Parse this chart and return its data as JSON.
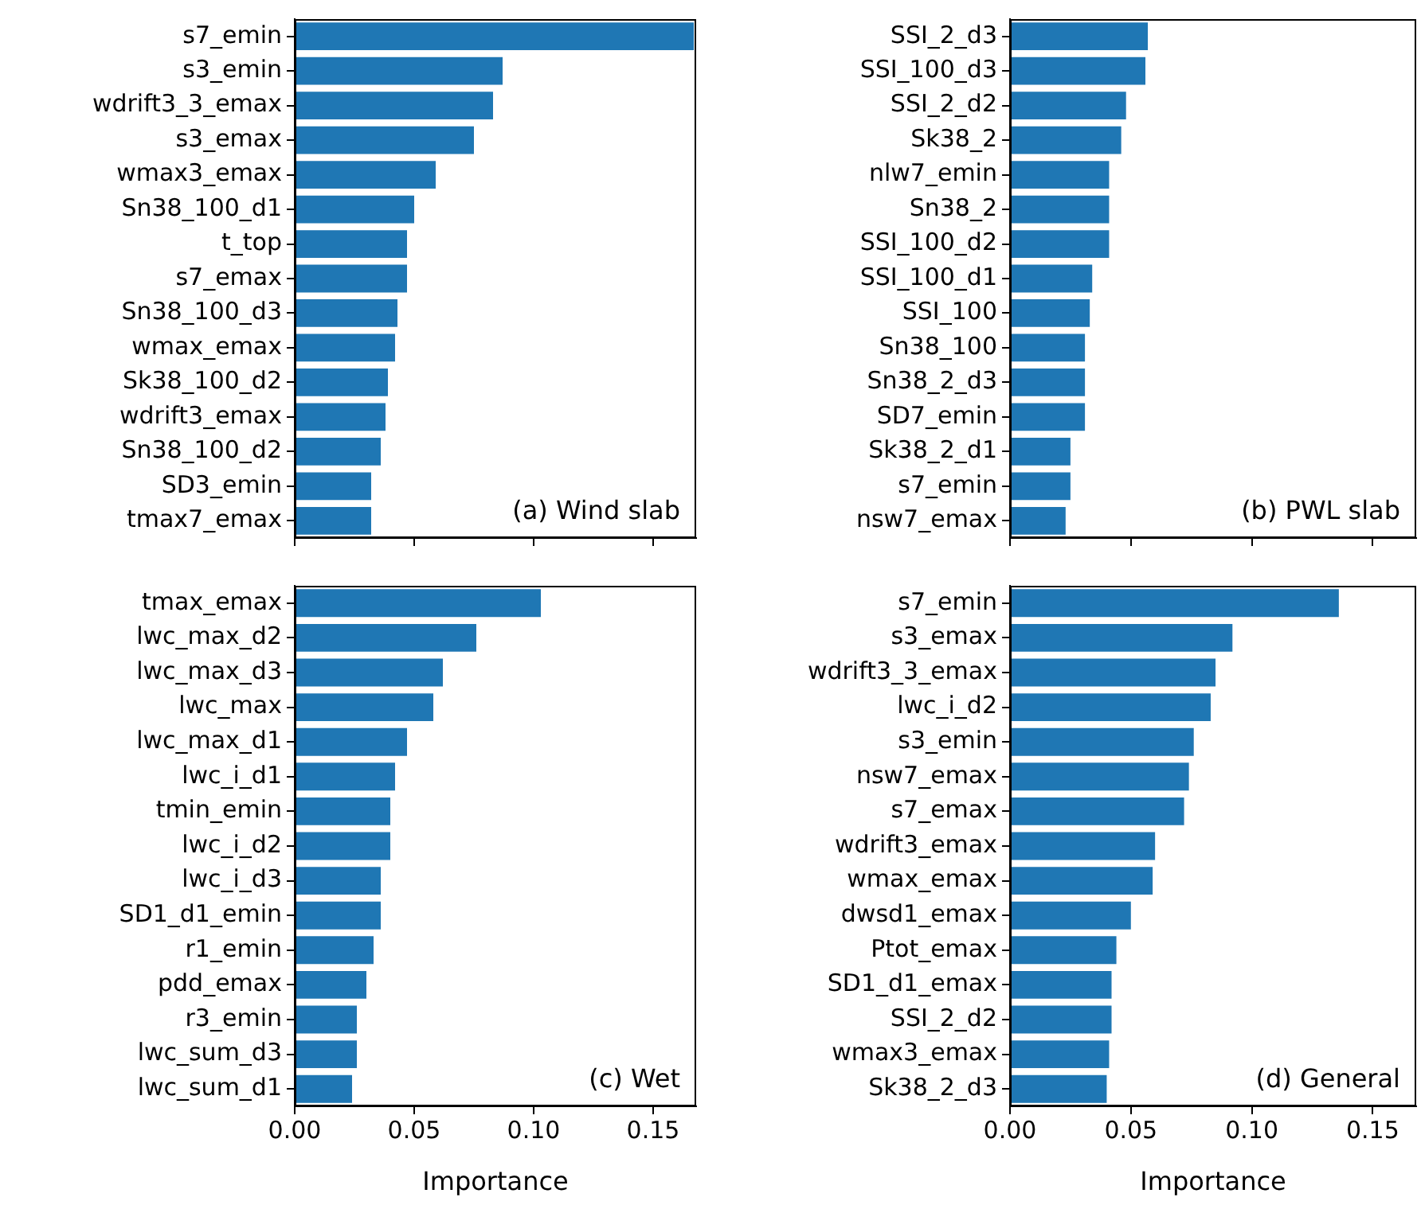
{
  "chart_data": [
    {
      "type": "bar",
      "orientation": "horizontal",
      "categories": [
        "s7_emin",
        "s3_emin",
        "wdrift3_3_emax",
        "s3_emax",
        "wmax3_emax",
        "Sn38_100_d1",
        "t_top",
        "s7_emax",
        "Sn38_100_d3",
        "wmax_emax",
        "Sk38_100_d2",
        "wdrift3_emax",
        "Sn38_100_d2",
        "SD3_emin",
        "tmax7_emax"
      ],
      "values": [
        0.167,
        0.087,
        0.083,
        0.075,
        0.059,
        0.05,
        0.047,
        0.047,
        0.043,
        0.042,
        0.039,
        0.038,
        0.036,
        0.032,
        0.032
      ],
      "color": "#1f77b4",
      "xlim": [
        0,
        0.168
      ],
      "xticks": [
        {
          "value": 0,
          "label": null
        },
        {
          "value": 0.05,
          "label": null
        },
        {
          "value": 0.1,
          "label": null
        },
        {
          "value": 0.15,
          "label": null
        }
      ],
      "tick_labels": "y",
      "grid": false,
      "legend": false,
      "annotations": [
        "(a) Wind slab"
      ]
    },
    {
      "type": "bar",
      "orientation": "horizontal",
      "categories": [
        "SSI_2_d3",
        "SSI_100_d3",
        "SSI_2_d2",
        "Sk38_2",
        "nlw7_emin",
        "Sn38_2",
        "SSI_100_d2",
        "SSI_100_d1",
        "SSI_100",
        "Sn38_100",
        "Sn38_2_d3",
        "SD7_emin",
        "Sk38_2_d1",
        "s7_emin",
        "nsw7_emax"
      ],
      "values": [
        0.057,
        0.056,
        0.048,
        0.046,
        0.041,
        0.041,
        0.041,
        0.034,
        0.033,
        0.031,
        0.031,
        0.031,
        0.025,
        0.025,
        0.023
      ],
      "color": "#1f77b4",
      "xlim": [
        0,
        0.168
      ],
      "xticks": [
        {
          "value": 0,
          "label": null
        },
        {
          "value": 0.05,
          "label": null
        },
        {
          "value": 0.1,
          "label": null
        },
        {
          "value": 0.15,
          "label": null
        }
      ],
      "tick_labels": "y",
      "grid": false,
      "legend": false,
      "annotations": [
        "(b) PWL slab"
      ]
    },
    {
      "type": "bar",
      "orientation": "horizontal",
      "categories": [
        "tmax_emax",
        "lwc_max_d2",
        "lwc_max_d3",
        "lwc_max",
        "lwc_max_d1",
        "lwc_i_d1",
        "tmin_emin",
        "lwc_i_d2",
        "lwc_i_d3",
        "SD1_d1_emin",
        "r1_emin",
        "pdd_emax",
        "r3_emin",
        "lwc_sum_d3",
        "lwc_sum_d1"
      ],
      "values": [
        0.103,
        0.076,
        0.062,
        0.058,
        0.047,
        0.042,
        0.04,
        0.04,
        0.036,
        0.036,
        0.033,
        0.03,
        0.026,
        0.026,
        0.024
      ],
      "color": "#1f77b4",
      "xlim": [
        0,
        0.168
      ],
      "xticks": [
        {
          "value": 0,
          "label": "0.00"
        },
        {
          "value": 0.05,
          "label": "0.05"
        },
        {
          "value": 0.1,
          "label": "0.10"
        },
        {
          "value": 0.15,
          "label": "0.15"
        }
      ],
      "xlabel": "Importance",
      "grid": false,
      "legend": false,
      "annotations": [
        "(c) Wet"
      ]
    },
    {
      "type": "bar",
      "orientation": "horizontal",
      "categories": [
        "s7_emin",
        "s3_emax",
        "wdrift3_3_emax",
        "lwc_i_d2",
        "s3_emin",
        "nsw7_emax",
        "s7_emax",
        "wdrift3_emax",
        "wmax_emax",
        "dwsd1_emax",
        "Ptot_emax",
        "SD1_d1_emax",
        "SSI_2_d2",
        "wmax3_emax",
        "Sk38_2_d3"
      ],
      "values": [
        0.136,
        0.092,
        0.085,
        0.083,
        0.076,
        0.074,
        0.072,
        0.06,
        0.059,
        0.05,
        0.044,
        0.042,
        0.042,
        0.041,
        0.04
      ],
      "color": "#1f77b4",
      "xlim": [
        0,
        0.168
      ],
      "xticks": [
        {
          "value": 0,
          "label": "0.00"
        },
        {
          "value": 0.05,
          "label": "0.05"
        },
        {
          "value": 0.1,
          "label": "0.10"
        },
        {
          "value": 0.15,
          "label": "0.15"
        }
      ],
      "xlabel": "Importance",
      "grid": false,
      "legend": false,
      "annotations": [
        "(d) General"
      ]
    }
  ]
}
